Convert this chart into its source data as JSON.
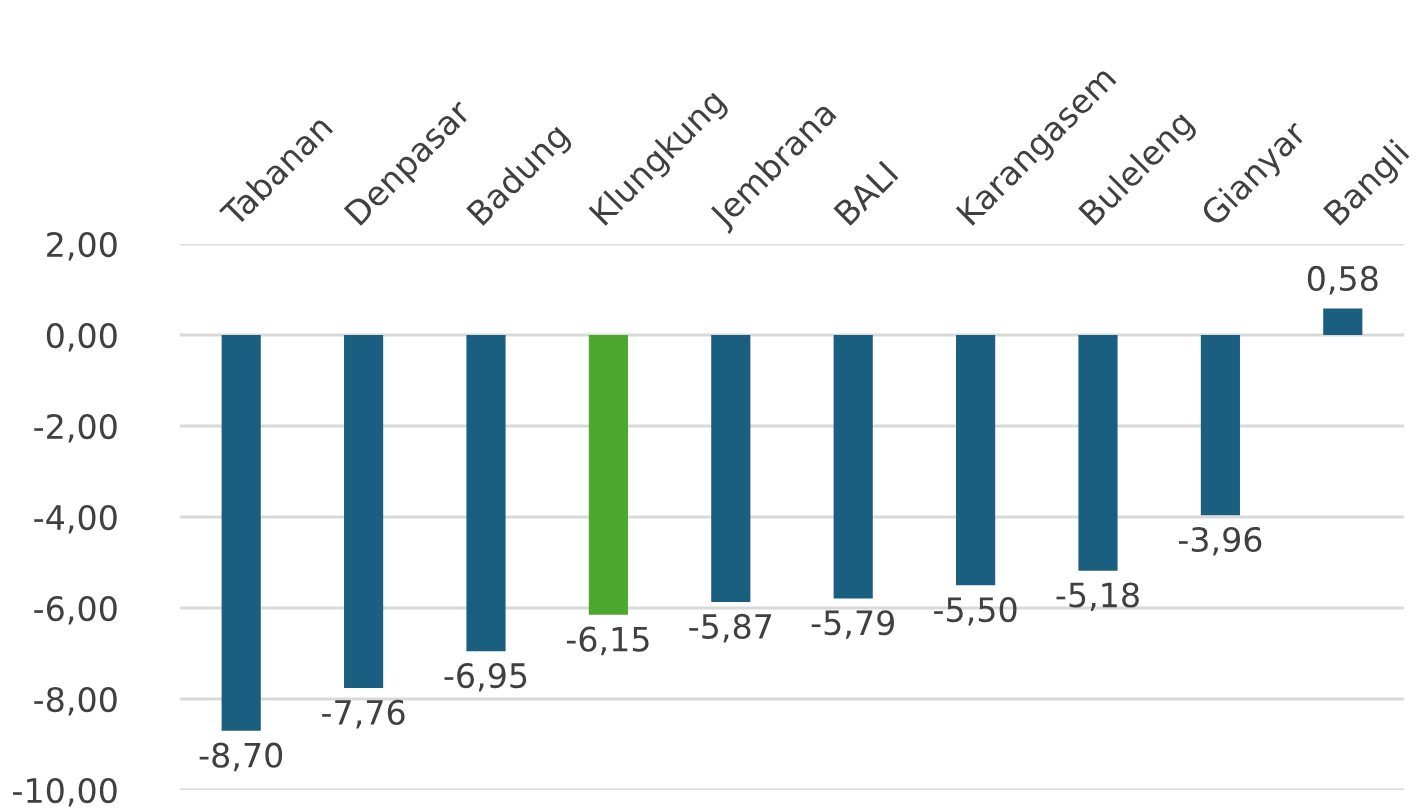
{
  "chart_data": {
    "type": "bar",
    "categories": [
      "Tabanan",
      "Denpasar",
      "Badung",
      "Klungkung",
      "Jembrana",
      "BALI",
      "Karangasem",
      "Buleleng",
      "Gianyar",
      "Bangli"
    ],
    "values": [
      -8.7,
      -7.76,
      -6.95,
      -6.15,
      -5.87,
      -5.79,
      -5.5,
      -5.18,
      -3.96,
      0.58
    ],
    "colors": [
      "#1b5f80",
      "#1b5f80",
      "#1b5f80",
      "#4ea72e",
      "#1b5f80",
      "#1b5f80",
      "#1b5f80",
      "#1b5f80",
      "#1b5f80",
      "#1b5f80"
    ],
    "value_labels": [
      "-8,70",
      "-7,76",
      "-6,95",
      "-6,15",
      "-5,87",
      "-5,79",
      "-5,50",
      "-5,18",
      "-3,96",
      "0,58"
    ],
    "ylim": [
      -10,
      2
    ],
    "yticks": [
      {
        "value": -10,
        "label": "-10,00"
      },
      {
        "value": -8,
        "label": "-8,00"
      },
      {
        "value": -6,
        "label": "-6,00"
      },
      {
        "value": -4,
        "label": "-4,00"
      },
      {
        "value": -2,
        "label": "-2,00"
      },
      {
        "value": 0,
        "label": "0,00"
      },
      {
        "value": 2,
        "label": "2,00"
      }
    ],
    "grid": "y",
    "legend": false
  }
}
